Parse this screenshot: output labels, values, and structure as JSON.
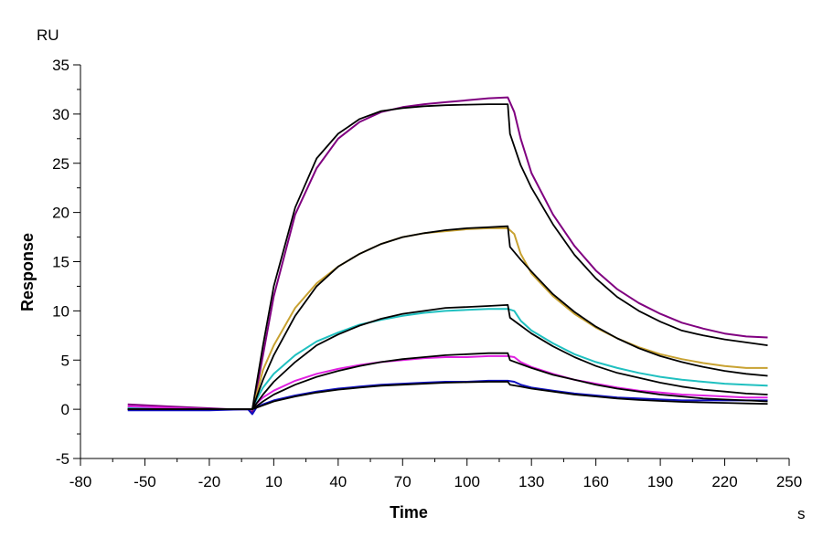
{
  "chart_data": {
    "type": "line",
    "title": "",
    "xlabel": "Time",
    "ylabel": "Response",
    "x_unit": "s",
    "y_unit": "RU",
    "xlim": [
      -80,
      250
    ],
    "ylim": [
      -5,
      35
    ],
    "x_ticks": [
      -80,
      -50,
      -20,
      10,
      40,
      70,
      100,
      130,
      160,
      190,
      220,
      250
    ],
    "y_ticks": [
      -5,
      0,
      5,
      10,
      15,
      20,
      25,
      30,
      35
    ],
    "x_tick_labels": [
      "-80",
      "-50",
      "-20",
      "10",
      "40",
      "70",
      "100",
      "130",
      "160",
      "190",
      "220",
      "250"
    ],
    "y_tick_labels": [
      "-5",
      "0",
      "5",
      "10",
      "15",
      "20",
      "25",
      "30",
      "35"
    ],
    "grid": false,
    "legend": "none",
    "series": [
      {
        "color": "#800080",
        "kind": "data",
        "x": [
          -58,
          -40,
          -20,
          -10,
          -2,
          0,
          2,
          5,
          10,
          20,
          30,
          40,
          50,
          60,
          70,
          80,
          90,
          100,
          110,
          119,
          122,
          125,
          130,
          140,
          150,
          160,
          170,
          180,
          190,
          200,
          210,
          220,
          230,
          240
        ],
        "y": [
          0.5,
          0.3,
          0.1,
          0.0,
          0.0,
          -0.3,
          2.0,
          5.5,
          11.5,
          19.8,
          24.5,
          27.5,
          29.2,
          30.2,
          30.7,
          31.0,
          31.2,
          31.4,
          31.6,
          31.7,
          30.2,
          27.5,
          24.0,
          19.8,
          16.6,
          14.1,
          12.2,
          10.8,
          9.7,
          8.8,
          8.2,
          7.7,
          7.4,
          7.3
        ]
      },
      {
        "color": "#000000",
        "kind": "fit",
        "x": [
          -58,
          -20,
          -2,
          0,
          5,
          10,
          20,
          30,
          40,
          50,
          60,
          70,
          80,
          90,
          100,
          110,
          119,
          120,
          125,
          130,
          140,
          150,
          160,
          170,
          180,
          190,
          200,
          210,
          220,
          230,
          240
        ],
        "y": [
          0.0,
          0.0,
          0.0,
          0.0,
          6.5,
          12.5,
          20.5,
          25.5,
          28.0,
          29.5,
          30.3,
          30.6,
          30.8,
          30.9,
          30.95,
          31.0,
          31.0,
          28.0,
          24.8,
          22.5,
          18.8,
          15.7,
          13.3,
          11.4,
          10.0,
          8.9,
          8.0,
          7.5,
          7.1,
          6.8,
          6.5
        ]
      },
      {
        "color": "#c8a232",
        "kind": "data",
        "x": [
          -58,
          -20,
          -2,
          0,
          2,
          5,
          10,
          20,
          30,
          40,
          50,
          60,
          70,
          80,
          90,
          100,
          110,
          119,
          122,
          125,
          130,
          140,
          150,
          160,
          170,
          180,
          190,
          200,
          210,
          220,
          230,
          240
        ],
        "y": [
          0.2,
          0.0,
          0.0,
          0.0,
          1.5,
          4.0,
          6.5,
          10.3,
          12.8,
          14.5,
          15.8,
          16.8,
          17.5,
          17.9,
          18.1,
          18.3,
          18.4,
          18.4,
          17.8,
          15.8,
          13.8,
          11.5,
          9.7,
          8.3,
          7.2,
          6.3,
          5.6,
          5.1,
          4.7,
          4.4,
          4.2,
          4.2
        ]
      },
      {
        "color": "#000000",
        "kind": "fit",
        "x": [
          -58,
          -2,
          0,
          5,
          10,
          20,
          30,
          40,
          50,
          60,
          70,
          80,
          90,
          100,
          110,
          119,
          120,
          125,
          130,
          140,
          150,
          160,
          170,
          180,
          190,
          200,
          210,
          220,
          230,
          240
        ],
        "y": [
          0.0,
          0.0,
          0.0,
          3.0,
          5.5,
          9.5,
          12.5,
          14.5,
          15.8,
          16.8,
          17.5,
          17.9,
          18.2,
          18.4,
          18.5,
          18.6,
          16.5,
          15.2,
          14.0,
          11.7,
          9.9,
          8.4,
          7.2,
          6.2,
          5.4,
          4.8,
          4.3,
          3.9,
          3.6,
          3.4
        ]
      },
      {
        "color": "#20c0c0",
        "kind": "data",
        "x": [
          -58,
          -20,
          -2,
          0,
          2,
          5,
          10,
          20,
          30,
          40,
          50,
          60,
          70,
          80,
          90,
          100,
          110,
          119,
          122,
          125,
          130,
          140,
          150,
          160,
          170,
          180,
          190,
          200,
          210,
          220,
          230,
          240
        ],
        "y": [
          0.1,
          0.0,
          0.0,
          0.0,
          1.0,
          2.2,
          3.6,
          5.5,
          6.9,
          7.8,
          8.6,
          9.1,
          9.5,
          9.8,
          10.0,
          10.1,
          10.2,
          10.2,
          10.0,
          9.0,
          8.0,
          6.7,
          5.6,
          4.8,
          4.2,
          3.7,
          3.3,
          3.0,
          2.8,
          2.6,
          2.5,
          2.4
        ]
      },
      {
        "color": "#000000",
        "kind": "fit",
        "x": [
          -58,
          -2,
          0,
          5,
          10,
          20,
          30,
          40,
          50,
          60,
          70,
          80,
          90,
          100,
          110,
          119,
          120,
          125,
          130,
          140,
          150,
          160,
          170,
          180,
          190,
          200,
          210,
          220,
          230,
          240
        ],
        "y": [
          0.0,
          0.0,
          0.0,
          1.5,
          2.8,
          4.8,
          6.5,
          7.6,
          8.5,
          9.2,
          9.7,
          10.0,
          10.3,
          10.4,
          10.5,
          10.6,
          9.3,
          8.5,
          7.7,
          6.4,
          5.3,
          4.4,
          3.7,
          3.2,
          2.7,
          2.3,
          2.0,
          1.8,
          1.6,
          1.5
        ]
      },
      {
        "color": "#e020e0",
        "kind": "data",
        "x": [
          -58,
          -20,
          -2,
          0,
          2,
          5,
          10,
          20,
          30,
          40,
          50,
          60,
          70,
          80,
          90,
          100,
          110,
          119,
          122,
          125,
          130,
          140,
          150,
          160,
          170,
          180,
          190,
          200,
          210,
          220,
          230,
          240
        ],
        "y": [
          0.3,
          0.0,
          0.0,
          0.0,
          0.6,
          1.2,
          1.9,
          2.9,
          3.6,
          4.1,
          4.5,
          4.8,
          5.0,
          5.2,
          5.3,
          5.3,
          5.4,
          5.4,
          5.3,
          4.8,
          4.3,
          3.6,
          3.0,
          2.6,
          2.2,
          1.9,
          1.7,
          1.5,
          1.4,
          1.3,
          1.2,
          1.2
        ]
      },
      {
        "color": "#000000",
        "kind": "fit",
        "x": [
          -58,
          -2,
          0,
          5,
          10,
          20,
          30,
          40,
          50,
          60,
          70,
          80,
          90,
          100,
          110,
          119,
          120,
          125,
          130,
          140,
          150,
          160,
          170,
          180,
          190,
          200,
          210,
          220,
          230,
          240
        ],
        "y": [
          0.0,
          0.0,
          0.0,
          0.8,
          1.5,
          2.5,
          3.3,
          3.9,
          4.4,
          4.8,
          5.1,
          5.3,
          5.5,
          5.6,
          5.7,
          5.7,
          5.0,
          4.6,
          4.2,
          3.5,
          3.0,
          2.5,
          2.1,
          1.8,
          1.5,
          1.3,
          1.1,
          1.0,
          0.9,
          0.8
        ]
      },
      {
        "color": "#1010c0",
        "kind": "data",
        "x": [
          -58,
          -20,
          -2,
          0,
          2,
          5,
          10,
          20,
          30,
          40,
          50,
          60,
          70,
          80,
          90,
          100,
          110,
          119,
          122,
          125,
          130,
          140,
          150,
          160,
          170,
          180,
          190,
          200,
          210,
          220,
          230,
          240
        ],
        "y": [
          -0.1,
          -0.1,
          0.0,
          -0.5,
          0.2,
          0.5,
          0.9,
          1.4,
          1.8,
          2.1,
          2.3,
          2.5,
          2.6,
          2.7,
          2.8,
          2.8,
          2.9,
          2.9,
          2.8,
          2.5,
          2.2,
          1.9,
          1.6,
          1.4,
          1.2,
          1.1,
          1.0,
          0.9,
          0.9,
          0.9,
          0.9,
          0.9
        ]
      },
      {
        "color": "#000000",
        "kind": "fit",
        "x": [
          -58,
          -2,
          0,
          5,
          10,
          20,
          30,
          40,
          50,
          60,
          70,
          80,
          90,
          100,
          110,
          119,
          120,
          125,
          130,
          140,
          150,
          160,
          170,
          180,
          190,
          200,
          210,
          220,
          230,
          240
        ],
        "y": [
          0.0,
          0.0,
          0.0,
          0.4,
          0.8,
          1.3,
          1.7,
          2.0,
          2.2,
          2.4,
          2.5,
          2.6,
          2.7,
          2.75,
          2.8,
          2.8,
          2.5,
          2.3,
          2.1,
          1.8,
          1.5,
          1.3,
          1.1,
          0.95,
          0.85,
          0.75,
          0.7,
          0.65,
          0.6,
          0.55
        ]
      }
    ]
  }
}
